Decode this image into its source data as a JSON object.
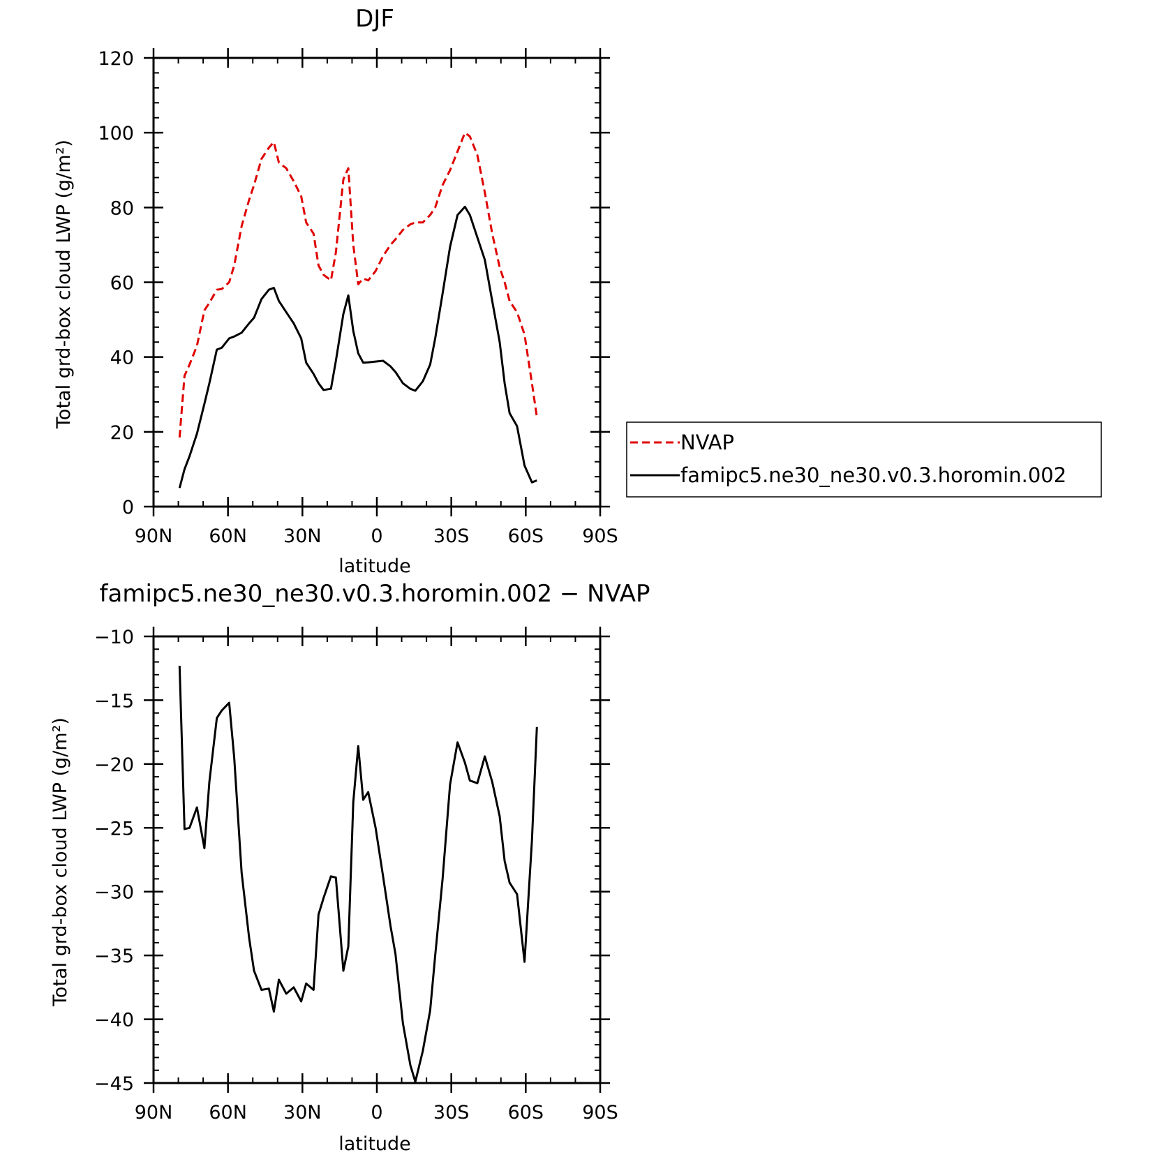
{
  "chart_data": [
    {
      "type": "line",
      "title": "DJF",
      "xlabel": "latitude",
      "ylabel": "Total grd-box cloud LWP (g/m²)",
      "xlim": [
        90,
        -90
      ],
      "ylim": [
        0,
        120
      ],
      "x_ticks": [
        90,
        60,
        30,
        0,
        -30,
        -60,
        -90
      ],
      "x_tick_labels": [
        "90N",
        "60N",
        "30N",
        "0",
        "30S",
        "60S",
        "90S"
      ],
      "y_ticks": [
        0,
        20,
        40,
        60,
        80,
        100,
        120
      ],
      "y_tick_labels": [
        "0",
        "20",
        "40",
        "60",
        "80",
        "100",
        "120"
      ],
      "legend": "outside-right",
      "series": [
        {
          "name": "NVAP",
          "color": "#e00000",
          "dash": "dashed",
          "points": [
            [
              79.5,
              18.5
            ],
            [
              77.5,
              35
            ],
            [
              75.5,
              38
            ],
            [
              72.5,
              43
            ],
            [
              69.5,
              52.5
            ],
            [
              67.5,
              54.5
            ],
            [
              64.5,
              58
            ],
            [
              62.5,
              58.2
            ],
            [
              59.5,
              60
            ],
            [
              57.5,
              64.5
            ],
            [
              54.5,
              75
            ],
            [
              51.5,
              82
            ],
            [
              49.5,
              86
            ],
            [
              46.5,
              93
            ],
            [
              43.5,
              96
            ],
            [
              41.5,
              97.5
            ],
            [
              39.5,
              92
            ],
            [
              36.5,
              90.5
            ],
            [
              33.5,
              87
            ],
            [
              30.5,
              83
            ],
            [
              28.5,
              76
            ],
            [
              25.5,
              73
            ],
            [
              23.5,
              64.5
            ],
            [
              21.5,
              62
            ],
            [
              18.5,
              60.5
            ],
            [
              16.5,
              68
            ],
            [
              13.5,
              87.5
            ],
            [
              11.5,
              90.5
            ],
            [
              9.5,
              70
            ],
            [
              7.5,
              59.5
            ],
            [
              5.5,
              61
            ],
            [
              3.5,
              60.5
            ],
            [
              0.5,
              63
            ],
            [
              -2.5,
              67
            ],
            [
              -5.5,
              70
            ],
            [
              -7.5,
              71.5
            ],
            [
              -10.5,
              74
            ],
            [
              -13.5,
              75.5
            ],
            [
              -15.5,
              76
            ],
            [
              -18.5,
              76
            ],
            [
              -21.5,
              78
            ],
            [
              -23.5,
              80
            ],
            [
              -26.5,
              86
            ],
            [
              -29.5,
              90
            ],
            [
              -32.5,
              95
            ],
            [
              -35.5,
              100
            ],
            [
              -37.5,
              99
            ],
            [
              -40.5,
              94
            ],
            [
              -43.5,
              84
            ],
            [
              -46.5,
              73
            ],
            [
              -49.5,
              64
            ],
            [
              -51.5,
              60
            ],
            [
              -53.5,
              55
            ],
            [
              -56.5,
              52
            ],
            [
              -59.5,
              46
            ],
            [
              -62.5,
              33
            ],
            [
              -64.5,
              24
            ]
          ]
        },
        {
          "name": "famipc5.ne30_ne30.v0.3.horomin.002",
          "color": "#000000",
          "dash": "solid",
          "points": [
            [
              79.5,
              5
            ],
            [
              77.5,
              10
            ],
            [
              75.5,
              13.5
            ],
            [
              72.5,
              19.5
            ],
            [
              69.5,
              27.5
            ],
            [
              67.5,
              33
            ],
            [
              64.5,
              42
            ],
            [
              62.5,
              42.5
            ],
            [
              59.5,
              45
            ],
            [
              57.5,
              45.5
            ],
            [
              54.5,
              46.5
            ],
            [
              51.5,
              49
            ],
            [
              49.5,
              50.5
            ],
            [
              46.5,
              55.5
            ],
            [
              43.5,
              58
            ],
            [
              41.5,
              58.5
            ],
            [
              39.5,
              55
            ],
            [
              36.5,
              52
            ],
            [
              33.5,
              49
            ],
            [
              30.5,
              45
            ],
            [
              28.5,
              38.5
            ],
            [
              25.5,
              35.5
            ],
            [
              23.5,
              33
            ],
            [
              21.5,
              31.2
            ],
            [
              18.5,
              31.5
            ],
            [
              16.5,
              39
            ],
            [
              13.5,
              51.5
            ],
            [
              11.5,
              56.5
            ],
            [
              9.5,
              47
            ],
            [
              7.5,
              41
            ],
            [
              5.5,
              38.5
            ],
            [
              3.5,
              38.6
            ],
            [
              0.5,
              38.8
            ],
            [
              -2.5,
              39
            ],
            [
              -5.5,
              37.5
            ],
            [
              -7.5,
              36
            ],
            [
              -10.5,
              33
            ],
            [
              -13.5,
              31.5
            ],
            [
              -15.5,
              31
            ],
            [
              -18.5,
              33.5
            ],
            [
              -21.5,
              38
            ],
            [
              -23.5,
              45
            ],
            [
              -26.5,
              57
            ],
            [
              -29.5,
              69.5
            ],
            [
              -32.5,
              78
            ],
            [
              -35.5,
              80.2
            ],
            [
              -37.5,
              78
            ],
            [
              -40.5,
              72
            ],
            [
              -43.5,
              66
            ],
            [
              -46.5,
              55
            ],
            [
              -49.5,
              44
            ],
            [
              -51.5,
              33
            ],
            [
              -53.5,
              25
            ],
            [
              -56.5,
              21.5
            ],
            [
              -59.5,
              11
            ],
            [
              -62.5,
              6.5
            ],
            [
              -64.5,
              7
            ]
          ]
        }
      ]
    },
    {
      "type": "line",
      "title": "famipc5.ne30_ne30.v0.3.horomin.002 − NVAP",
      "xlabel": "latitude",
      "ylabel": "Total grd-box cloud LWP (g/m²)",
      "xlim": [
        90,
        -90
      ],
      "ylim": [
        -45,
        -10
      ],
      "x_ticks": [
        90,
        60,
        30,
        0,
        -30,
        -60,
        -90
      ],
      "x_tick_labels": [
        "90N",
        "60N",
        "30N",
        "0",
        "30S",
        "60S",
        "90S"
      ],
      "y_ticks": [
        -45,
        -40,
        -35,
        -30,
        -25,
        -20,
        -15,
        -10
      ],
      "y_tick_labels": [
        "−45",
        "−40",
        "−35",
        "−30",
        "−25",
        "−20",
        "−15",
        "−10"
      ],
      "series": [
        {
          "color": "#000000",
          "dash": "solid",
          "points": [
            [
              79.5,
              -12.3
            ],
            [
              77.5,
              -25.1
            ],
            [
              75.5,
              -25
            ],
            [
              72.5,
              -23.4
            ],
            [
              69.5,
              -26.6
            ],
            [
              67.5,
              -21.4
            ],
            [
              64.5,
              -16.4
            ],
            [
              62.5,
              -15.8
            ],
            [
              59.5,
              -15.2
            ],
            [
              57.5,
              -19.5
            ],
            [
              54.5,
              -28.5
            ],
            [
              51.5,
              -33.6
            ],
            [
              49.5,
              -36.2
            ],
            [
              46.5,
              -37.7
            ],
            [
              43.5,
              -37.6
            ],
            [
              41.5,
              -39.4
            ],
            [
              39.5,
              -36.9
            ],
            [
              36.5,
              -38
            ],
            [
              33.5,
              -37.5
            ],
            [
              30.5,
              -38.6
            ],
            [
              28.5,
              -37.2
            ],
            [
              25.5,
              -37.7
            ],
            [
              23.5,
              -31.8
            ],
            [
              21.5,
              -30.5
            ],
            [
              18.5,
              -28.8
            ],
            [
              16.5,
              -28.9
            ],
            [
              13.5,
              -36.2
            ],
            [
              11.5,
              -34.3
            ],
            [
              9.5,
              -23
            ],
            [
              7.5,
              -18.6
            ],
            [
              5.5,
              -22.8
            ],
            [
              3.5,
              -22.2
            ],
            [
              0.5,
              -25
            ],
            [
              -2.5,
              -28.8
            ],
            [
              -5.5,
              -32.7
            ],
            [
              -7.5,
              -34.9
            ],
            [
              -10.5,
              -40.3
            ],
            [
              -13.5,
              -43.6
            ],
            [
              -15.5,
              -44.9
            ],
            [
              -18.5,
              -42.5
            ],
            [
              -21.5,
              -39.3
            ],
            [
              -23.5,
              -35
            ],
            [
              -26.5,
              -29
            ],
            [
              -29.5,
              -21.6
            ],
            [
              -32.5,
              -18.3
            ],
            [
              -35.5,
              -19.9
            ],
            [
              -37.5,
              -21.3
            ],
            [
              -40.5,
              -21.5
            ],
            [
              -43.5,
              -19.4
            ],
            [
              -46.5,
              -21.4
            ],
            [
              -49.5,
              -24.1
            ],
            [
              -51.5,
              -27.6
            ],
            [
              -53.5,
              -29.3
            ],
            [
              -56.5,
              -30.2
            ],
            [
              -59.5,
              -35.5
            ],
            [
              -62.5,
              -26
            ],
            [
              -64.5,
              -17.1
            ]
          ]
        }
      ]
    }
  ]
}
